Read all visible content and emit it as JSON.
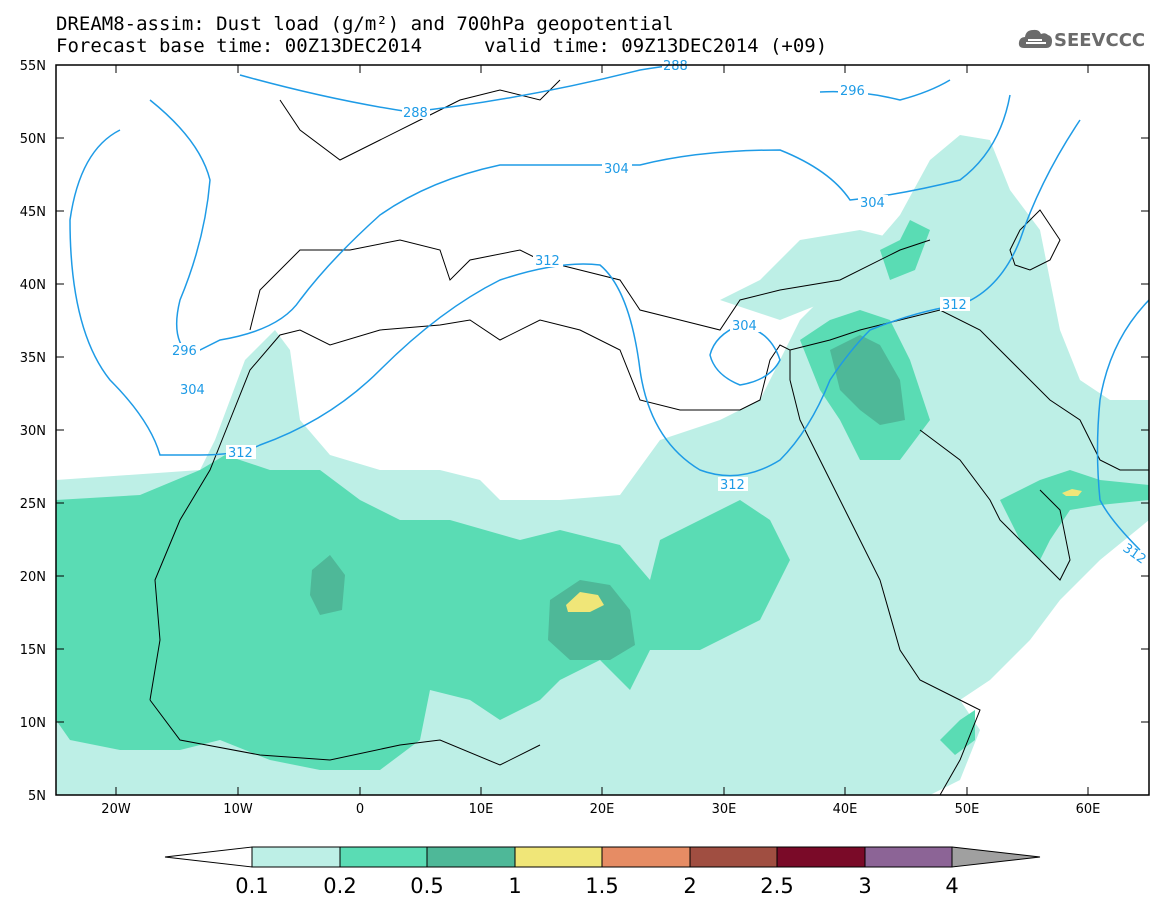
{
  "header": {
    "title_line1": "DREAM8-assim: Dust load (g/m²) and 700hPa geopotential",
    "base_time": "Forecast base time: 00Z13DEC2014",
    "valid_time": "valid time: 09Z13DEC2014 (+09)",
    "logo_text": "SEEVCCC"
  },
  "map": {
    "lon_range": [
      -25,
      65
    ],
    "lat_range": [
      5,
      55
    ],
    "lon_ticks": [
      "20W",
      "10W",
      "0",
      "10E",
      "20E",
      "30E",
      "40E",
      "50E",
      "60E"
    ],
    "lat_ticks": [
      "55N",
      "50N",
      "45N",
      "40N",
      "35N",
      "30N",
      "25N",
      "20N",
      "15N",
      "10N",
      "5N"
    ],
    "contour_color": "#1e9be6",
    "contour_labels": [
      "288",
      "288",
      "296",
      "304",
      "312",
      "296",
      "304",
      "312",
      "304",
      "312",
      "312",
      "312"
    ]
  },
  "legend": {
    "colors": [
      "#bdefe6",
      "#5adcb4",
      "#4eb898",
      "#f0e678",
      "#e68c64",
      "#a04e41",
      "#7a0a28",
      "#8c6496",
      "#a0a0a0"
    ],
    "labels": [
      "0.1",
      "0.2",
      "0.5",
      "1",
      "1.5",
      "2",
      "2.5",
      "3",
      "4"
    ]
  }
}
